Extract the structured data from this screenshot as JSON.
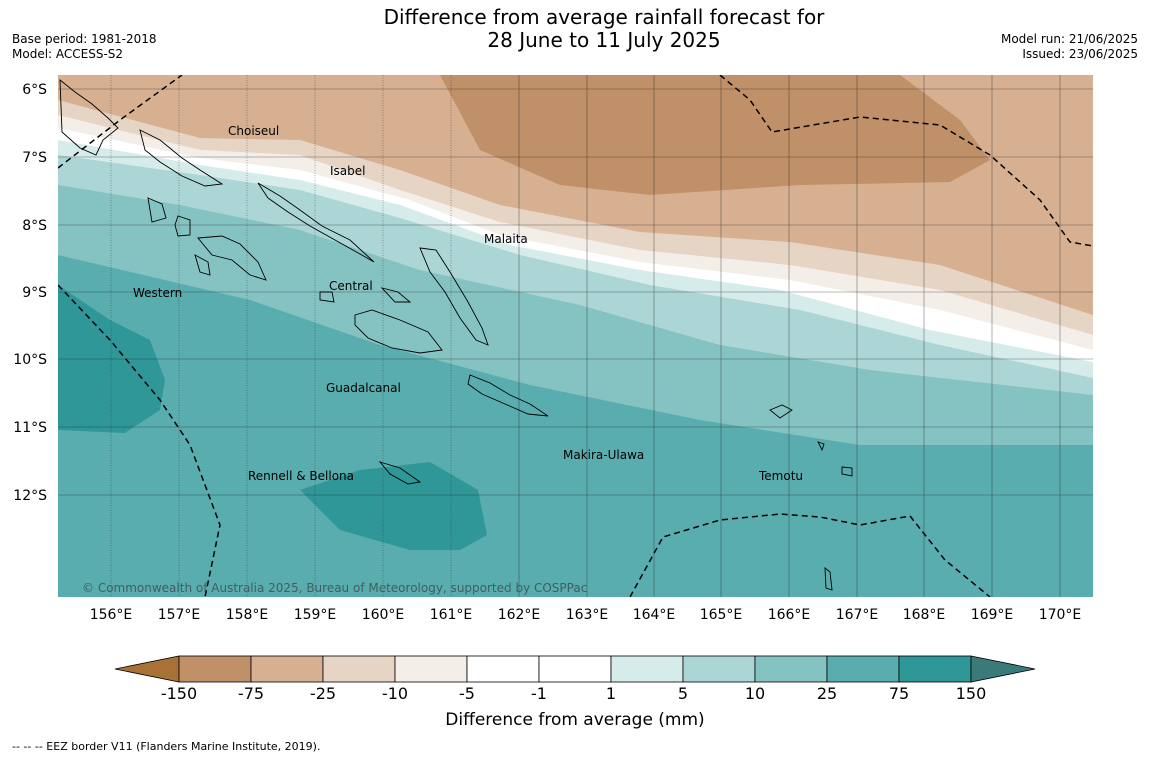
{
  "title": {
    "line1": "Difference from average rainfall forecast for",
    "line2": "28 June to 11 July 2025"
  },
  "meta_left": {
    "base_period": "Base period: 1981-2018",
    "model": "Model: ACCESS-S2"
  },
  "meta_right": {
    "model_run": "Model run: 21/06/2025",
    "issued": "Issued: 23/06/2025"
  },
  "map": {
    "lat_labels": [
      "6°S",
      "7°S",
      "8°S",
      "9°S",
      "10°S",
      "11°S",
      "12°S"
    ],
    "lon_labels": [
      "156°E",
      "157°E",
      "158°E",
      "159°E",
      "160°E",
      "161°E",
      "162°E",
      "163°E",
      "164°E",
      "165°E",
      "166°E",
      "167°E",
      "168°E",
      "169°E",
      "170°E"
    ],
    "province_labels": [
      "Choiseul",
      "Isabel",
      "Malaita",
      "Central",
      "Western",
      "Guadalcanal",
      "Makira-Ulawa",
      "Temotu",
      "Rennell & Bellona"
    ],
    "copyright": "© Commonwealth of Australia 2025, Bureau of Meteorology, supported by COSPPac"
  },
  "colorbar": {
    "labels": [
      "-150",
      "-75",
      "-25",
      "-10",
      "-5",
      "-1",
      "1",
      "5",
      "10",
      "25",
      "75",
      "150"
    ],
    "colors": [
      "#a87236",
      "#c09068",
      "#d6b091",
      "#e6d5c4",
      "#f3eee8",
      "#ffffff",
      "#d6eceb",
      "#acd6d5",
      "#85c3c2",
      "#5aadae",
      "#2f9797",
      "#3a7a78"
    ],
    "title": "Difference from average (mm)"
  },
  "footnote": "--  --  -- EEZ border V11 (Flanders Marine Institute, 2019)."
}
